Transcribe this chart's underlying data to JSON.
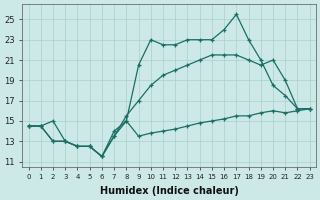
{
  "xlabel": "Humidex (Indice chaleur)",
  "bg_color": "#cce9e7",
  "grid_color": "#a8d0cd",
  "line_color": "#1a6e65",
  "xlim": [
    -0.5,
    23.5
  ],
  "ylim": [
    10.5,
    26.5
  ],
  "yticks": [
    11,
    13,
    15,
    17,
    19,
    21,
    23,
    25
  ],
  "xticks": [
    0,
    1,
    2,
    3,
    4,
    5,
    6,
    7,
    8,
    9,
    10,
    11,
    12,
    13,
    14,
    15,
    16,
    17,
    18,
    19,
    20,
    21,
    22,
    23
  ],
  "curve1_x": [
    0,
    1,
    2,
    3,
    4,
    5,
    6,
    7,
    8,
    9,
    10,
    11,
    12,
    13,
    14,
    15,
    16,
    17,
    18,
    19,
    20,
    21,
    22,
    23
  ],
  "curve1_y": [
    14.5,
    14.5,
    15.0,
    13.0,
    12.5,
    12.5,
    11.5,
    14.0,
    15.0,
    20.5,
    23.0,
    22.5,
    22.5,
    23.0,
    23.0,
    23.0,
    24.0,
    25.5,
    23.0,
    21.0,
    18.5,
    17.5,
    16.2,
    16.2
  ],
  "curve2_x": [
    0,
    1,
    2,
    3,
    4,
    5,
    6,
    7,
    8,
    9,
    10,
    11,
    12,
    13,
    14,
    15,
    16,
    17,
    18,
    19,
    20,
    21,
    22,
    23
  ],
  "curve2_y": [
    14.5,
    14.5,
    13.0,
    13.0,
    12.5,
    12.5,
    11.5,
    13.5,
    15.5,
    17.0,
    18.5,
    19.5,
    20.0,
    20.5,
    21.0,
    21.5,
    21.5,
    21.5,
    21.0,
    20.5,
    21.0,
    19.0,
    16.2,
    16.2
  ],
  "curve3_x": [
    0,
    1,
    2,
    3,
    4,
    5,
    6,
    7,
    8,
    9,
    10,
    11,
    12,
    13,
    14,
    15,
    16,
    17,
    18,
    19,
    20,
    21,
    22,
    23
  ],
  "curve3_y": [
    14.5,
    14.5,
    13.0,
    13.0,
    12.5,
    12.5,
    11.5,
    13.5,
    15.0,
    13.5,
    13.8,
    14.0,
    14.2,
    14.5,
    14.8,
    15.0,
    15.2,
    15.5,
    15.5,
    15.8,
    16.0,
    15.8,
    16.0,
    16.2
  ]
}
